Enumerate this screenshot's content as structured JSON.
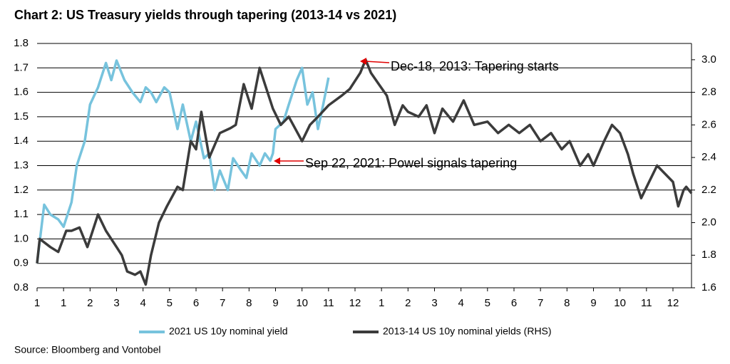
{
  "chart_data": {
    "type": "line",
    "title": "Chart 2: US Treasury yields through tapering (2013-14 vs 2021)",
    "source": "Source: Bloomberg and Vontobel",
    "annotations": [
      "Dec-18, 2013: Tapering starts",
      "Sep 22, 2021: Powel signals tapering"
    ],
    "xlim": [
      0,
      24.7
    ],
    "xticks": [
      {
        "value": 0,
        "label": "1"
      },
      {
        "value": 1,
        "label": "1"
      },
      {
        "value": 2,
        "label": "2"
      },
      {
        "value": 3,
        "label": "3"
      },
      {
        "value": 4,
        "label": "4"
      },
      {
        "value": 5,
        "label": "5"
      },
      {
        "value": 6,
        "label": "6"
      },
      {
        "value": 7,
        "label": "7"
      },
      {
        "value": 8,
        "label": "8"
      },
      {
        "value": 9,
        "label": "9"
      },
      {
        "value": 10,
        "label": "10"
      },
      {
        "value": 11,
        "label": "11"
      },
      {
        "value": 12,
        "label": "12"
      },
      {
        "value": 13,
        "label": "1"
      },
      {
        "value": 14,
        "label": "2"
      },
      {
        "value": 15,
        "label": "3"
      },
      {
        "value": 16,
        "label": "4"
      },
      {
        "value": 17,
        "label": "5"
      },
      {
        "value": 18,
        "label": "6"
      },
      {
        "value": 19,
        "label": "7"
      },
      {
        "value": 20,
        "label": "8"
      },
      {
        "value": 21,
        "label": "9"
      },
      {
        "value": 22,
        "label": "10"
      },
      {
        "value": 23,
        "label": "11"
      },
      {
        "value": 24,
        "label": "12"
      }
    ],
    "ylim": [
      0.8,
      1.8
    ],
    "yticks": [
      0.8,
      0.9,
      {
        "value": 1.0,
        "label": "1.0"
      },
      1.1,
      1.2,
      1.3,
      1.4,
      1.5,
      1.6,
      1.7,
      1.8
    ],
    "y2lim": [
      1.6,
      3.1
    ],
    "y2ticks": [
      1.6,
      1.8,
      {
        "value": 2.0,
        "label": "2.0"
      },
      2.2,
      2.4,
      2.6,
      2.8,
      {
        "value": 3.0,
        "label": "3.0"
      }
    ],
    "grid": true,
    "legend": "bottom",
    "series": [
      {
        "name": "2021 US 10y nominal yield",
        "color": "#77c3dd",
        "axis": "y",
        "x": [
          0,
          0.27,
          0.5,
          0.8,
          1.0,
          1.3,
          1.5,
          1.8,
          2.0,
          2.3,
          2.6,
          2.8,
          3.0,
          3.3,
          3.6,
          3.9,
          4.1,
          4.3,
          4.5,
          4.8,
          5.0,
          5.3,
          5.5,
          5.8,
          6.0,
          6.3,
          6.5,
          6.7,
          6.9,
          7.2,
          7.4,
          7.7,
          7.9,
          8.1,
          8.4,
          8.6,
          8.8,
          8.9,
          9.0,
          9.3,
          9.5,
          9.8,
          10.0,
          10.2,
          10.4,
          10.6,
          10.8,
          11.0
        ],
        "values": [
          0.9,
          1.14,
          1.1,
          1.08,
          1.05,
          1.15,
          1.3,
          1.4,
          1.55,
          1.62,
          1.72,
          1.65,
          1.73,
          1.65,
          1.6,
          1.56,
          1.62,
          1.6,
          1.56,
          1.62,
          1.6,
          1.45,
          1.55,
          1.4,
          1.48,
          1.33,
          1.35,
          1.2,
          1.28,
          1.2,
          1.33,
          1.28,
          1.25,
          1.35,
          1.3,
          1.35,
          1.32,
          1.35,
          1.45,
          1.48,
          1.55,
          1.65,
          1.7,
          1.55,
          1.6,
          1.45,
          1.55,
          1.66
        ]
      },
      {
        "name": "2013-14 US 10y nominal yields (RHS)",
        "color": "#3b3b3b",
        "axis": "y2",
        "x": [
          0,
          0.1,
          0.5,
          0.8,
          1.1,
          1.3,
          1.6,
          1.9,
          2.3,
          2.6,
          3.0,
          3.2,
          3.4,
          3.7,
          3.9,
          4.1,
          4.3,
          4.6,
          4.9,
          5.3,
          5.5,
          5.8,
          6.0,
          6.2,
          6.5,
          6.9,
          7.3,
          7.5,
          7.8,
          8.1,
          8.4,
          8.6,
          8.9,
          9.2,
          9.5,
          10.0,
          10.3,
          10.6,
          11.0,
          11.5,
          11.8,
          12.2,
          12.4,
          12.6,
          12.9,
          13.2,
          13.5,
          13.8,
          14.0,
          14.4,
          14.7,
          15.0,
          15.3,
          15.7,
          16.1,
          16.5,
          17.0,
          17.4,
          17.8,
          18.2,
          18.6,
          19.0,
          19.4,
          19.8,
          20.1,
          20.5,
          20.8,
          21.0,
          21.4,
          21.7,
          22.0,
          22.3,
          22.5,
          22.8,
          23.1,
          23.4,
          23.7,
          24.0,
          24.2,
          24.4,
          24.5,
          24.7
        ],
        "values": [
          1.75,
          1.9,
          1.85,
          1.82,
          1.95,
          1.95,
          1.97,
          1.85,
          2.05,
          1.95,
          1.85,
          1.8,
          1.7,
          1.68,
          1.7,
          1.62,
          1.8,
          2.0,
          2.1,
          2.22,
          2.2,
          2.5,
          2.45,
          2.68,
          2.4,
          2.55,
          2.58,
          2.6,
          2.85,
          2.7,
          2.95,
          2.85,
          2.7,
          2.6,
          2.65,
          2.5,
          2.6,
          2.65,
          2.72,
          2.78,
          2.82,
          2.92,
          3.0,
          2.92,
          2.85,
          2.78,
          2.6,
          2.72,
          2.68,
          2.65,
          2.72,
          2.55,
          2.7,
          2.62,
          2.75,
          2.6,
          2.62,
          2.55,
          2.6,
          2.55,
          2.6,
          2.5,
          2.55,
          2.45,
          2.5,
          2.35,
          2.42,
          2.35,
          2.5,
          2.6,
          2.55,
          2.42,
          2.3,
          2.15,
          2.25,
          2.35,
          2.3,
          2.25,
          2.1,
          2.2,
          2.22,
          2.18
        ]
      }
    ]
  }
}
